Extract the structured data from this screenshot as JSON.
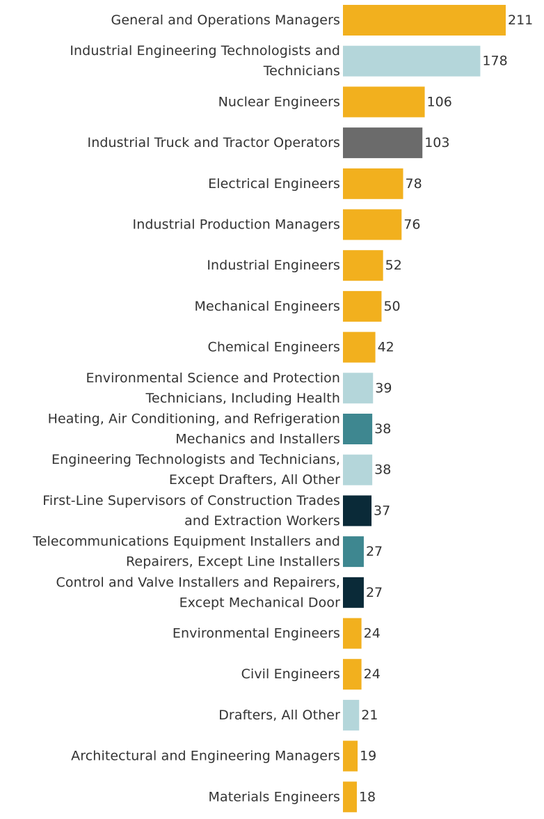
{
  "chart_data": {
    "type": "bar",
    "orientation": "horizontal",
    "title": "",
    "xlabel": "",
    "ylabel": "",
    "grid": false,
    "xlim": [
      0,
      211
    ],
    "categories": [
      [
        "General and Operations Managers"
      ],
      [
        "Industrial Engineering Technologists and",
        "Technicians"
      ],
      [
        "Nuclear Engineers"
      ],
      [
        "Industrial Truck and Tractor Operators"
      ],
      [
        "Electrical Engineers"
      ],
      [
        "Industrial Production Managers"
      ],
      [
        "Industrial Engineers"
      ],
      [
        "Mechanical Engineers"
      ],
      [
        "Chemical Engineers"
      ],
      [
        "Environmental Science and Protection",
        "Technicians, Including Health"
      ],
      [
        "Heating, Air Conditioning, and Refrigeration",
        "Mechanics and Installers"
      ],
      [
        "Engineering Technologists and Technicians,",
        "Except Drafters, All Other"
      ],
      [
        "First-Line Supervisors of Construction Trades",
        "and Extraction Workers"
      ],
      [
        "Telecommunications Equipment Installers and",
        "Repairers, Except Line Installers"
      ],
      [
        "Control and Valve Installers and Repairers,",
        "Except Mechanical Door"
      ],
      [
        "Environmental Engineers"
      ],
      [
        "Civil Engineers"
      ],
      [
        "Drafters, All Other"
      ],
      [
        "Architectural and Engineering Managers"
      ],
      [
        "Materials Engineers"
      ]
    ],
    "values": [
      211,
      178,
      106,
      103,
      78,
      76,
      52,
      50,
      42,
      39,
      38,
      38,
      37,
      27,
      27,
      24,
      24,
      21,
      19,
      18
    ],
    "value_labels": [
      "211",
      "178",
      "106",
      "103",
      "78",
      "76",
      "52",
      "50",
      "42",
      "39",
      "38",
      "38",
      "37",
      "27",
      "27",
      "24",
      "24",
      "21",
      "19",
      "18"
    ],
    "colors": [
      "#F2B01E",
      "#B4D6DA",
      "#F2B01E",
      "#6B6B6B",
      "#F2B01E",
      "#F2B01E",
      "#F2B01E",
      "#F2B01E",
      "#F2B01E",
      "#B4D6DA",
      "#3E8790",
      "#B4D6DA",
      "#0A2A38",
      "#3E8790",
      "#0A2A38",
      "#F2B01E",
      "#F2B01E",
      "#B4D6DA",
      "#F2B01E",
      "#F2B01E"
    ]
  }
}
